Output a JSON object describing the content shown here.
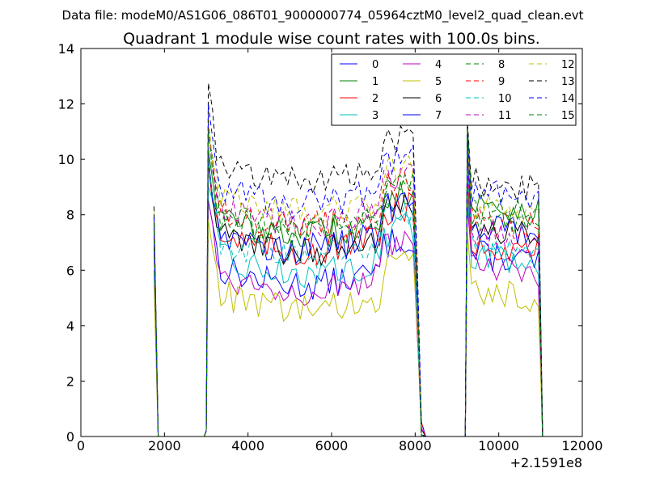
{
  "header": {
    "data_file": "Data file: modeM0/AS1G06_086T01_9000000774_05964cztM0_level2_quad_clean.evt",
    "title": "Quadrant 1 module wise count rates with 100.0s bins."
  },
  "chart_data": {
    "type": "line",
    "title": "Quadrant 1 module wise count rates with 100.0s bins.",
    "xlabel": "",
    "ylabel": "",
    "xlim": [
      0,
      12000
    ],
    "ylim": [
      0,
      14
    ],
    "x_offset_label": "+2.1591e8",
    "x_ticks": [
      0,
      2000,
      4000,
      6000,
      8000,
      10000,
      12000
    ],
    "x_tick_labels": [
      "0",
      "2000",
      "4000",
      "6000",
      "8000",
      "10000",
      "12000"
    ],
    "y_ticks": [
      0,
      2,
      4,
      6,
      8,
      10,
      12,
      14
    ],
    "y_tick_labels": [
      "0",
      "2",
      "4",
      "6",
      "8",
      "10",
      "12",
      "14"
    ],
    "grid": false,
    "legend_position": "top-right",
    "segments": [
      {
        "x_start": 1750,
        "x_end": 1950
      },
      {
        "x_start": 3050,
        "x_end": 8150
      },
      {
        "x_start": 9250,
        "x_end": 11050
      }
    ],
    "series": [
      {
        "name": "0",
        "color": "#0000ff",
        "dash": "solid",
        "seg_levels": [
          7.9,
          6.2,
          6.6
        ]
      },
      {
        "name": "1",
        "color": "#008000",
        "dash": "solid",
        "seg_levels": [
          8.0,
          8.0,
          8.4
        ]
      },
      {
        "name": "2",
        "color": "#ff0000",
        "dash": "solid",
        "seg_levels": [
          7.2,
          7.4,
          7.0
        ]
      },
      {
        "name": "3",
        "color": "#00bfbf",
        "dash": "solid",
        "seg_levels": [
          6.0,
          6.6,
          6.6
        ]
      },
      {
        "name": "4",
        "color": "#bf00bf",
        "dash": "solid",
        "seg_levels": [
          6.8,
          6.0,
          6.1
        ]
      },
      {
        "name": "5",
        "color": "#bfbf00",
        "dash": "solid",
        "seg_levels": [
          5.5,
          5.3,
          5.3
        ]
      },
      {
        "name": "6",
        "color": "#000000",
        "dash": "solid",
        "seg_levels": [
          7.5,
          7.4,
          7.5
        ]
      },
      {
        "name": "7",
        "color": "#0000ff",
        "dash": "solid",
        "seg_levels": [
          7.7,
          7.5,
          7.6
        ]
      },
      {
        "name": "8",
        "color": "#008000",
        "dash": "dashed",
        "seg_levels": [
          7.8,
          8.2,
          8.0
        ]
      },
      {
        "name": "9",
        "color": "#ff0000",
        "dash": "dashed",
        "seg_levels": [
          7.6,
          8.3,
          7.8
        ]
      },
      {
        "name": "10",
        "color": "#00bfbf",
        "dash": "dashed",
        "seg_levels": [
          7.0,
          7.2,
          7.0
        ]
      },
      {
        "name": "11",
        "color": "#bf00bf",
        "dash": "dashed",
        "seg_levels": [
          7.2,
          8.4,
          7.3
        ]
      },
      {
        "name": "12",
        "color": "#bfbf00",
        "dash": "dashed",
        "seg_levels": [
          8.1,
          8.8,
          8.3
        ]
      },
      {
        "name": "13",
        "color": "#000000",
        "dash": "dashed",
        "seg_levels": [
          8.3,
          9.9,
          9.2
        ]
      },
      {
        "name": "14",
        "color": "#0000ff",
        "dash": "dashed",
        "seg_levels": [
          7.9,
          9.1,
          8.8
        ]
      },
      {
        "name": "15",
        "color": "#008000",
        "dash": "dashed",
        "seg_levels": [
          7.7,
          8.1,
          8.2
        ]
      }
    ]
  }
}
